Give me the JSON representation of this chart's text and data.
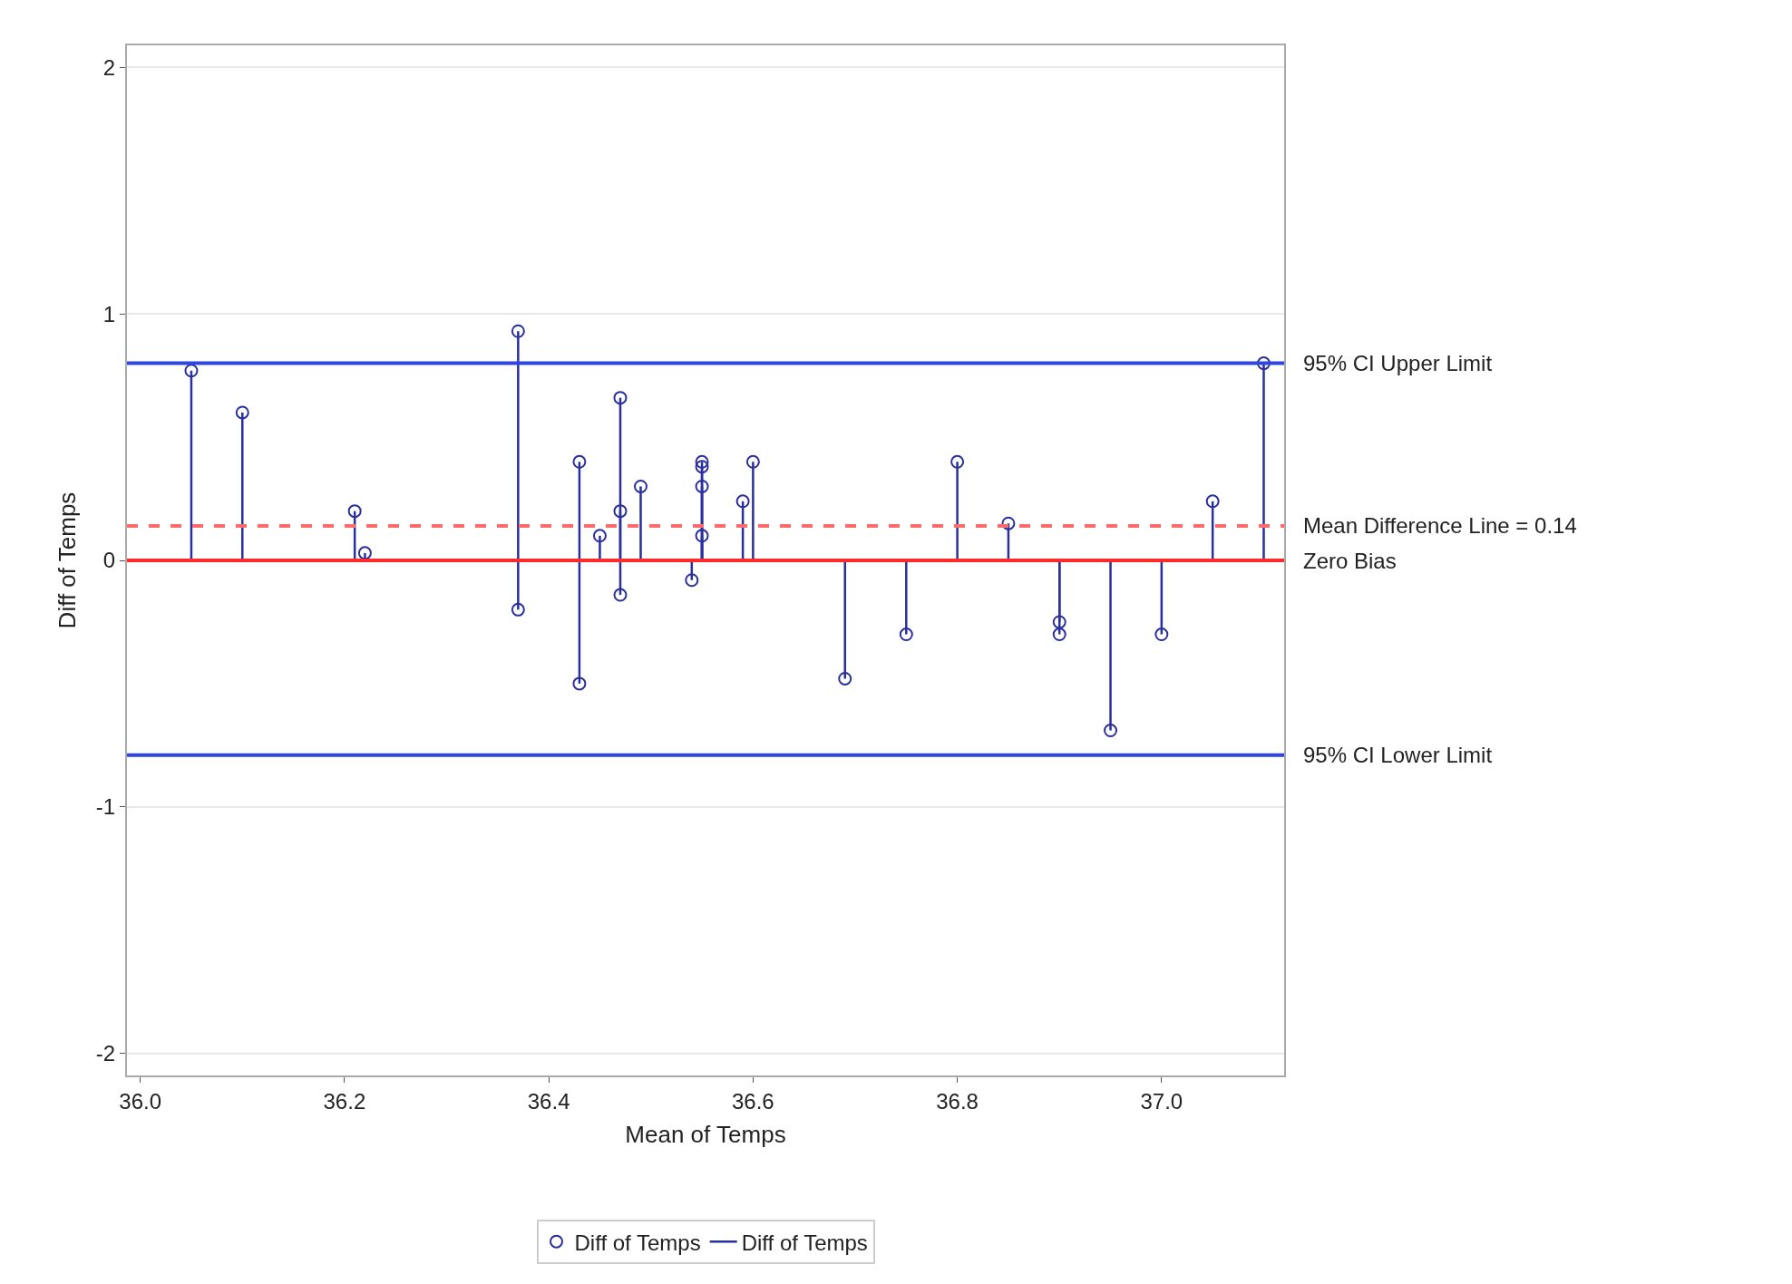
{
  "chart_data": {
    "type": "lollipop",
    "xlabel": "Mean of Temps",
    "ylabel": "Diff of Temps",
    "x": [
      36.05,
      36.1,
      36.21,
      36.22,
      36.37,
      36.37,
      36.43,
      36.43,
      36.45,
      36.47,
      36.47,
      36.47,
      36.49,
      36.54,
      36.55,
      36.55,
      36.55,
      36.55,
      36.59,
      36.6,
      36.69,
      36.75,
      36.8,
      36.85,
      36.9,
      36.9,
      36.95,
      37.0,
      37.05,
      37.1
    ],
    "series": [
      {
        "name": "Diff of Temps",
        "color": "#2a2f9e",
        "values": [
          0.77,
          0.6,
          0.2,
          0.03,
          0.93,
          -0.2,
          0.4,
          -0.5,
          0.1,
          0.66,
          0.2,
          -0.14,
          0.3,
          -0.08,
          0.4,
          0.38,
          0.3,
          0.1,
          0.24,
          0.4,
          -0.48,
          -0.3,
          0.4,
          0.15,
          -0.25,
          -0.3,
          -0.69,
          -0.3,
          0.24,
          0.8
        ]
      }
    ],
    "xlim": [
      35.987,
      37.12
    ],
    "ylim": [
      -2.09,
      2.09
    ],
    "xticks": [
      {
        "value": 36.0,
        "label": "36.0"
      },
      {
        "value": 36.2,
        "label": "36.2"
      },
      {
        "value": 36.4,
        "label": "36.4"
      },
      {
        "value": 36.6,
        "label": "36.6"
      },
      {
        "value": 36.8,
        "label": "36.8"
      },
      {
        "value": 37.0,
        "label": "37.0"
      }
    ],
    "yticks": [
      -2,
      -1,
      0,
      1,
      2
    ],
    "ref_lines": [
      {
        "axis": "y",
        "value": 0.8,
        "label": "95% CI Upper Limit",
        "color": "#2f45e0",
        "line_style": "solid"
      },
      {
        "axis": "y",
        "value": 0.14,
        "label": "Mean Difference Line = 0.14",
        "color": "#ff6b6b",
        "line_style": "dashed"
      },
      {
        "axis": "y",
        "value": 0,
        "label": "Zero Bias",
        "color": "#ff2a2a",
        "line_style": "solid"
      },
      {
        "axis": "y",
        "value": -0.79,
        "label": "95% CI Lower Limit",
        "color": "#2f45e0",
        "line_style": "solid"
      }
    ],
    "grid": "y",
    "legend": "bottom",
    "marker": "circle"
  }
}
